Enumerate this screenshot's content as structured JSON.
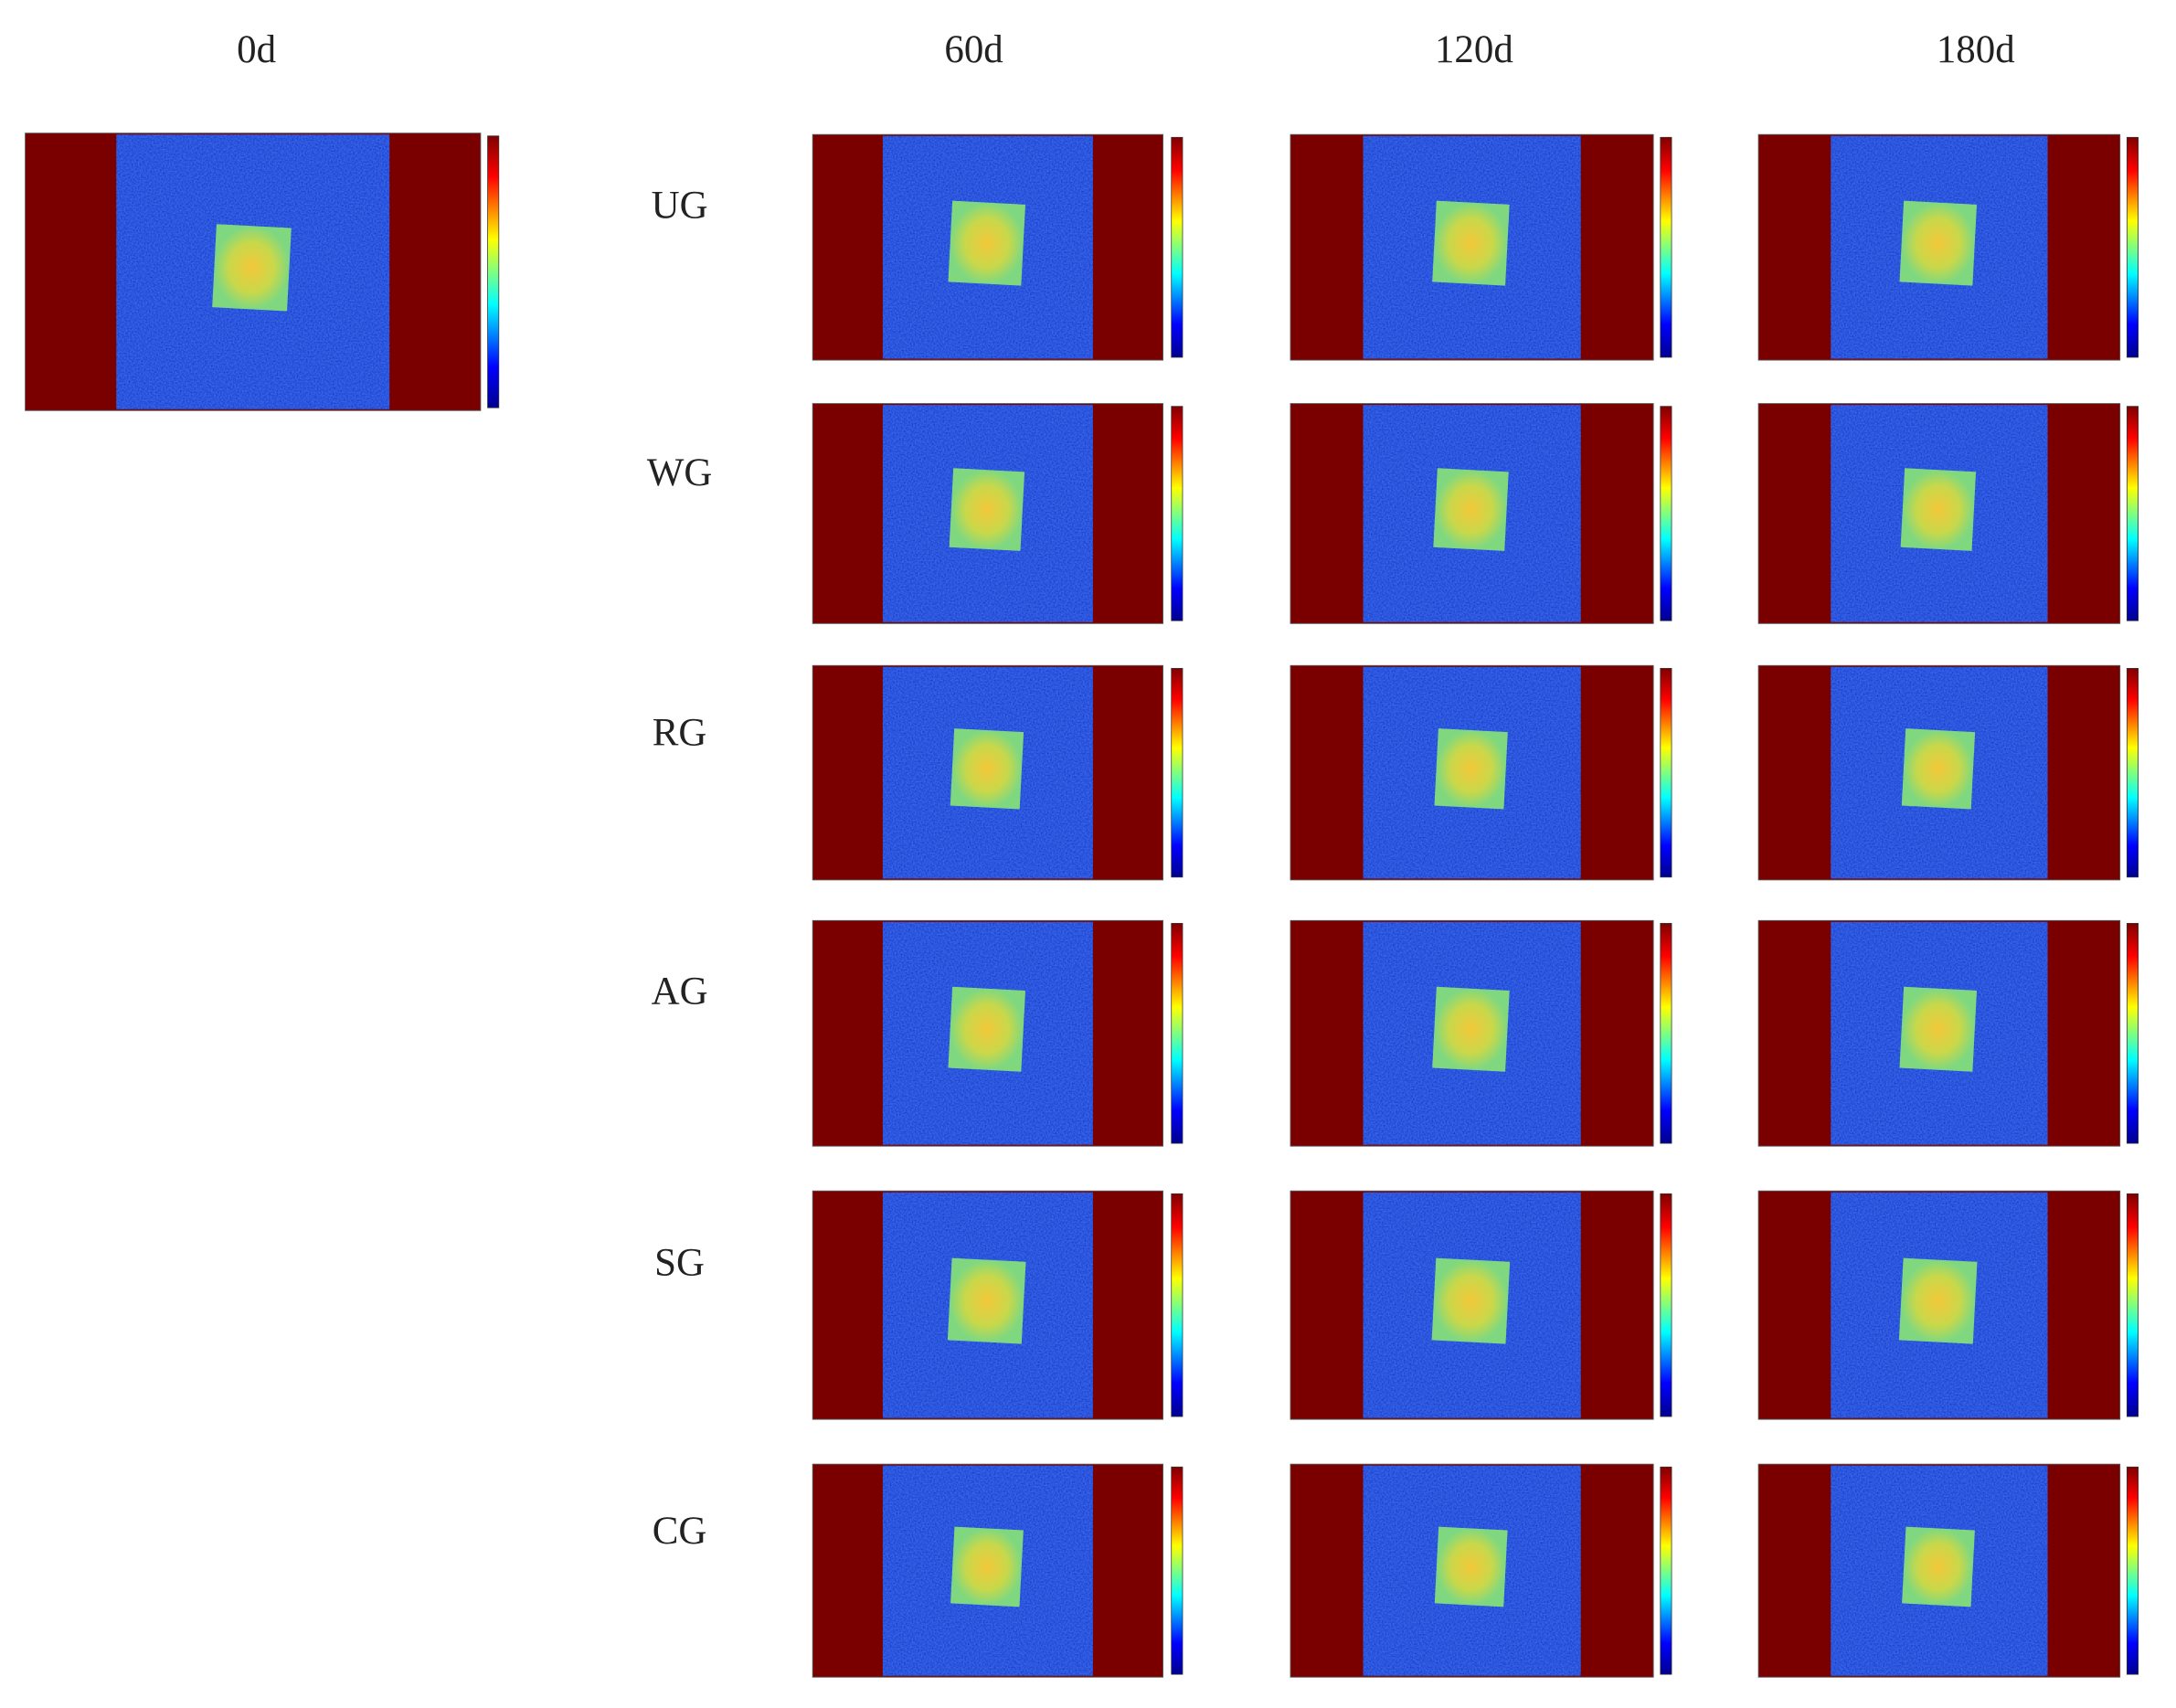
{
  "headers": [
    "0d",
    "60d",
    "120d",
    "180d"
  ],
  "rows": [
    "UG",
    "WG",
    "RG",
    "AG",
    "SG",
    "CG"
  ]
}
